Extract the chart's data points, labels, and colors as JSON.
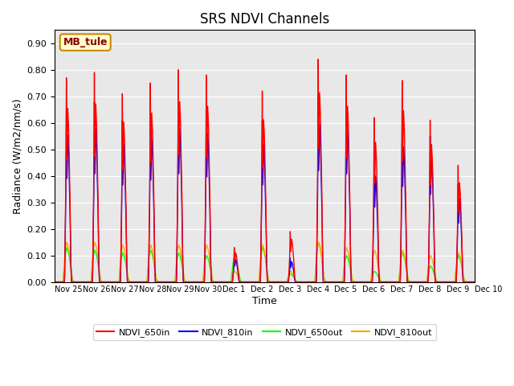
{
  "title": "SRS NDVI Channels",
  "xlabel": "Time",
  "ylabel": "Radiance (W/m2/nm/s)",
  "annotation": "MB_tule",
  "ylim": [
    0.0,
    0.95
  ],
  "yticks": [
    0.0,
    0.1,
    0.2,
    0.3,
    0.4,
    0.5,
    0.6,
    0.7,
    0.8,
    0.9
  ],
  "bg_color": "#e8e8e8",
  "legend_labels": [
    "NDVI_650in",
    "NDVI_810in",
    "NDVI_650out",
    "NDVI_810out"
  ],
  "n_days": 15,
  "day_peaks_650in": [
    0.77,
    0.79,
    0.71,
    0.75,
    0.8,
    0.78,
    0.13,
    0.72,
    0.19,
    0.84,
    0.78,
    0.62,
    0.76,
    0.61,
    0.44
  ],
  "day_peaks_810in": [
    0.65,
    0.68,
    0.61,
    0.64,
    0.68,
    0.66,
    0.1,
    0.61,
    0.09,
    0.7,
    0.68,
    0.47,
    0.6,
    0.55,
    0.37
  ],
  "day_peaks_650out": [
    0.13,
    0.12,
    0.11,
    0.12,
    0.11,
    0.1,
    0.09,
    0.13,
    0.03,
    0.15,
    0.1,
    0.04,
    0.11,
    0.06,
    0.1
  ],
  "day_peaks_810out": [
    0.15,
    0.15,
    0.14,
    0.14,
    0.14,
    0.14,
    0.04,
    0.14,
    0.04,
    0.15,
    0.13,
    0.12,
    0.12,
    0.1,
    0.11
  ],
  "tick_labels": [
    "Nov 25",
    "Nov 26",
    "Nov 27",
    "Nov 28",
    "Nov 29",
    "Nov 30",
    "Dec 1",
    "Dec 2",
    "Dec 3",
    "Dec 4",
    "Dec 5",
    "Dec 6",
    "Dec 7",
    "Dec 8",
    "Dec 9",
    "Dec 10"
  ],
  "figsize": [
    6.4,
    4.8
  ],
  "dpi": 100
}
